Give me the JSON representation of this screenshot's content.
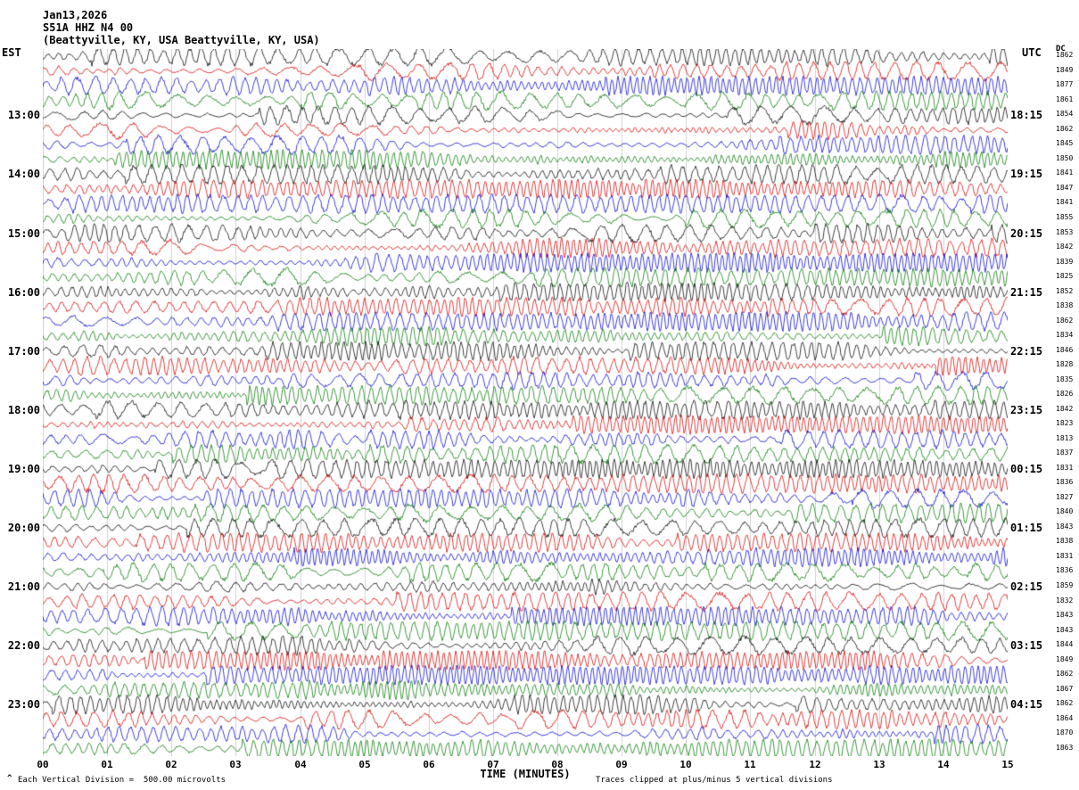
{
  "header": {
    "date": "Jan13,2026",
    "station": "S51A HHZ N4 00",
    "location": "(Beattyville, KY, USA Beattyville, KY, USA)"
  },
  "axes": {
    "left_timezone": "EST",
    "right_timezone": "UTC",
    "dc_header": "DC",
    "x_title": "TIME (MINUTES)"
  },
  "footer": {
    "marker": "^",
    "scale_note": "Each Vertical Division =  500.00 microvolts",
    "clip_note": "Traces clipped at plus/minus 5 vertical divisions"
  },
  "chart_data": {
    "type": "line",
    "title": "Helicorder seismogram S51A HHZ N4 00, Beattyville, KY, USA, Jan13,2026",
    "xlabel": "TIME (MINUTES)",
    "x_ticks": [
      "00",
      "01",
      "02",
      "03",
      "04",
      "05",
      "06",
      "07",
      "08",
      "09",
      "10",
      "11",
      "12",
      "13",
      "14",
      "15"
    ],
    "x_range_minutes": [
      0,
      15
    ],
    "rows": 48,
    "minutes_per_row": 15,
    "first_row_start_est": "12:00",
    "first_label_row": 4,
    "label_row_step": 4,
    "left_hour_labels": [
      "13:00",
      "14:00",
      "15:00",
      "16:00",
      "17:00",
      "18:00",
      "19:00",
      "20:00",
      "21:00",
      "22:00",
      "23:00"
    ],
    "right_hour_labels": [
      "18:15",
      "19:15",
      "20:15",
      "21:15",
      "22:15",
      "23:15",
      "00:15",
      "01:15",
      "02:15",
      "03:15",
      "04:15"
    ],
    "dc_values": [
      1862,
      1849,
      1877,
      1861,
      1854,
      1862,
      1845,
      1850,
      1841,
      1847,
      1841,
      1855,
      1853,
      1842,
      1839,
      1825,
      1852,
      1838,
      1862,
      1834,
      1846,
      1828,
      1835,
      1826,
      1842,
      1823,
      1813,
      1837,
      1831,
      1836,
      1827,
      1840,
      1843,
      1838,
      1831,
      1836,
      1859,
      1832,
      1843,
      1843,
      1844,
      1849,
      1862,
      1867,
      1862,
      1864,
      1870,
      1863
    ],
    "trace_colors": [
      "#000000",
      "#d40000",
      "#0000cc",
      "#007700"
    ],
    "grid_color": "#d2d2d2",
    "vertical_division_microvolts": 500.0,
    "clip_divisions": 5,
    "legend": "none",
    "grid": "vertical-minute-lines"
  }
}
